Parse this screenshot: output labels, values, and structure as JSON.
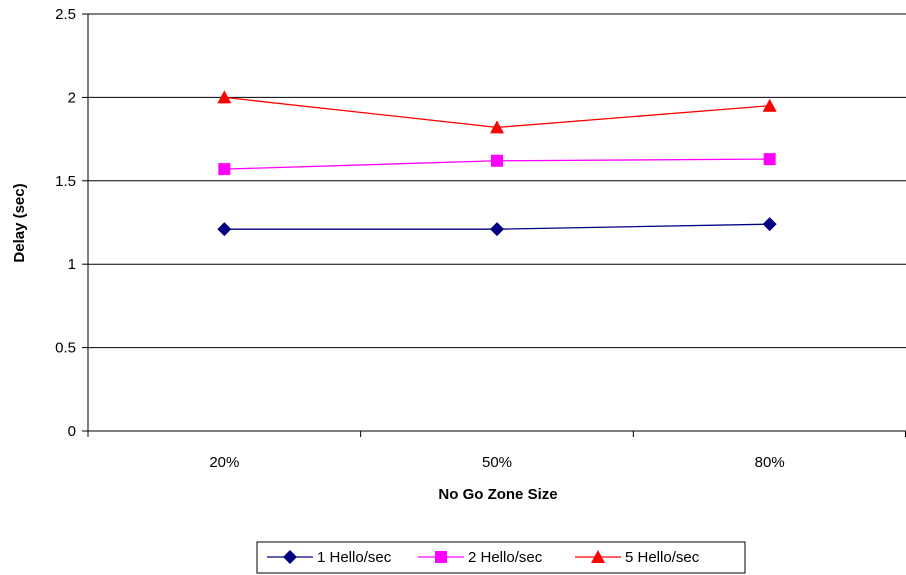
{
  "chart_data": {
    "type": "line",
    "title": "",
    "xlabel": "No Go Zone Size",
    "ylabel": "Delay (sec)",
    "categories": [
      "20%",
      "50%",
      "80%"
    ],
    "ylim": [
      0,
      2.5
    ],
    "yticks": [
      "0",
      "0.5",
      "1",
      "1.5",
      "2",
      "2.5"
    ],
    "grid": "horizontal",
    "legend_position": "bottom",
    "series": [
      {
        "name": "1 Hello/sec",
        "values": [
          1.21,
          1.21,
          1.24
        ],
        "color": "#000080",
        "marker": "diamond"
      },
      {
        "name": "2 Hello/sec",
        "values": [
          1.57,
          1.62,
          1.63
        ],
        "color": "#FF00FF",
        "marker": "square"
      },
      {
        "name": "5 Hello/sec",
        "values": [
          2.0,
          1.82,
          1.95
        ],
        "color": "#FF0000",
        "marker": "triangle"
      }
    ]
  }
}
